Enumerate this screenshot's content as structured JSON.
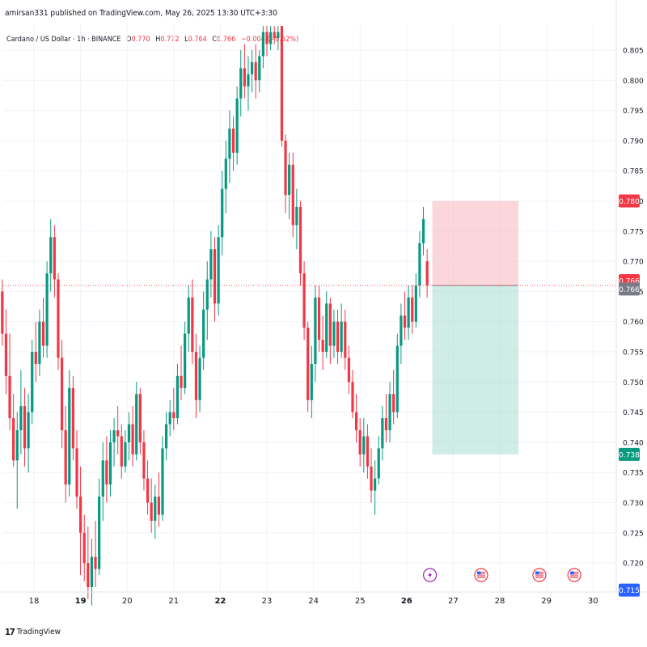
{
  "header": {
    "published_line": "amirsan331 published on TradingView.com, May 26, 2025 13:30 UTC+3:30"
  },
  "legend": {
    "symbol": "Cardano / US Dollar · 1h · BINANCE",
    "open_label": "O",
    "open": "0.770",
    "high_label": "H",
    "high": "0.772",
    "low_label": "L",
    "low": "0.764",
    "close_label": "C",
    "close": "0.766",
    "change": "−0.004 (−0.52%)"
  },
  "footer": {
    "brand": "TradingView"
  },
  "colors": {
    "up": "#089981",
    "down": "#f23645",
    "stop_zone": "#f7b6bd",
    "target_zone": "#a8dccf",
    "current_price_line": "#f23645",
    "gray_badge": "#787b86",
    "blue_badge": "#2962ff"
  },
  "chart_data": {
    "type": "candlestick",
    "y_ticks": [
      "0.805",
      "0.800",
      "0.795",
      "0.790",
      "0.785",
      "0.780",
      "0.775",
      "0.770",
      "0.765",
      "0.760",
      "0.755",
      "0.750",
      "0.745",
      "0.740",
      "0.735",
      "0.730",
      "0.725",
      "0.720"
    ],
    "ylim": [
      0.7155,
      0.809
    ],
    "x_ticks": [
      "18",
      "19",
      "20",
      "21",
      "22",
      "23",
      "24",
      "25",
      "26",
      "27",
      "28",
      "29",
      "30"
    ],
    "x_ticks_bold": [
      "19",
      "22",
      "26"
    ],
    "grid": true,
    "price_badges": [
      {
        "label": "0.780",
        "value": 0.78,
        "color": "#f23645"
      },
      {
        "label": "0.766",
        "value": 0.7668,
        "color": "#f23645"
      },
      {
        "label": "0.766",
        "value": 0.7654,
        "color": "#787b86"
      },
      {
        "label": "0.738",
        "value": 0.738,
        "color": "#089981"
      },
      {
        "label": "0.715",
        "value": 0.7155,
        "color": "#2962ff"
      }
    ],
    "current_price": 0.766,
    "position": {
      "entry": 0.766,
      "stop": 0.78,
      "target": 0.738,
      "start_day": 26.55,
      "end_day": 28.4
    },
    "event_icons": [
      {
        "icon": "lightning-icon",
        "day": 26.5
      },
      {
        "icon": "us-flag-icon",
        "day": 27.6
      },
      {
        "icon": "us-flag-icon",
        "day": 28.85
      },
      {
        "icon": "us-flag-icon",
        "day": 29.6
      }
    ],
    "candles": [
      {
        "d": 17.0,
        "o": 0.766,
        "h": 0.77,
        "l": 0.758,
        "c": 0.762
      },
      {
        "d": 17.08,
        "o": 0.762,
        "h": 0.778,
        "l": 0.76,
        "c": 0.776
      },
      {
        "d": 17.16,
        "o": 0.776,
        "h": 0.78,
        "l": 0.768,
        "c": 0.77
      },
      {
        "d": 17.24,
        "o": 0.77,
        "h": 0.772,
        "l": 0.762,
        "c": 0.765
      },
      {
        "d": 17.32,
        "o": 0.765,
        "h": 0.767,
        "l": 0.756,
        "c": 0.758
      },
      {
        "d": 17.4,
        "o": 0.758,
        "h": 0.762,
        "l": 0.748,
        "c": 0.751
      },
      {
        "d": 17.48,
        "o": 0.751,
        "h": 0.758,
        "l": 0.742,
        "c": 0.744
      },
      {
        "d": 17.56,
        "o": 0.744,
        "h": 0.748,
        "l": 0.736,
        "c": 0.737
      },
      {
        "d": 17.64,
        "o": 0.737,
        "h": 0.745,
        "l": 0.729,
        "c": 0.742
      },
      {
        "d": 17.72,
        "o": 0.742,
        "h": 0.752,
        "l": 0.738,
        "c": 0.746
      },
      {
        "d": 17.8,
        "o": 0.746,
        "h": 0.749,
        "l": 0.736,
        "c": 0.739
      },
      {
        "d": 17.88,
        "o": 0.739,
        "h": 0.748,
        "l": 0.735,
        "c": 0.745
      },
      {
        "d": 17.96,
        "o": 0.745,
        "h": 0.757,
        "l": 0.743,
        "c": 0.755
      },
      {
        "d": 18.04,
        "o": 0.755,
        "h": 0.76,
        "l": 0.75,
        "c": 0.753
      },
      {
        "d": 18.12,
        "o": 0.753,
        "h": 0.762,
        "l": 0.751,
        "c": 0.76
      },
      {
        "d": 18.2,
        "o": 0.76,
        "h": 0.764,
        "l": 0.754,
        "c": 0.756
      },
      {
        "d": 18.28,
        "o": 0.756,
        "h": 0.77,
        "l": 0.754,
        "c": 0.768
      },
      {
        "d": 18.36,
        "o": 0.768,
        "h": 0.777,
        "l": 0.765,
        "c": 0.774
      },
      {
        "d": 18.44,
        "o": 0.774,
        "h": 0.776,
        "l": 0.764,
        "c": 0.767
      },
      {
        "d": 18.52,
        "o": 0.767,
        "h": 0.768,
        "l": 0.752,
        "c": 0.754
      },
      {
        "d": 18.6,
        "o": 0.754,
        "h": 0.757,
        "l": 0.739,
        "c": 0.742
      },
      {
        "d": 18.68,
        "o": 0.742,
        "h": 0.746,
        "l": 0.73,
        "c": 0.733
      },
      {
        "d": 18.76,
        "o": 0.733,
        "h": 0.752,
        "l": 0.731,
        "c": 0.749
      },
      {
        "d": 18.84,
        "o": 0.749,
        "h": 0.751,
        "l": 0.737,
        "c": 0.739
      },
      {
        "d": 18.92,
        "o": 0.739,
        "h": 0.742,
        "l": 0.729,
        "c": 0.731
      },
      {
        "d": 19.0,
        "o": 0.731,
        "h": 0.736,
        "l": 0.718,
        "c": 0.725
      },
      {
        "d": 19.08,
        "o": 0.725,
        "h": 0.728,
        "l": 0.717,
        "c": 0.72
      },
      {
        "d": 19.16,
        "o": 0.72,
        "h": 0.726,
        "l": 0.714,
        "c": 0.716
      },
      {
        "d": 19.24,
        "o": 0.716,
        "h": 0.724,
        "l": 0.713,
        "c": 0.721
      },
      {
        "d": 19.32,
        "o": 0.721,
        "h": 0.727,
        "l": 0.716,
        "c": 0.719
      },
      {
        "d": 19.4,
        "o": 0.719,
        "h": 0.734,
        "l": 0.718,
        "c": 0.731
      },
      {
        "d": 19.48,
        "o": 0.731,
        "h": 0.74,
        "l": 0.727,
        "c": 0.737
      },
      {
        "d": 19.56,
        "o": 0.737,
        "h": 0.741,
        "l": 0.73,
        "c": 0.733
      },
      {
        "d": 19.64,
        "o": 0.733,
        "h": 0.742,
        "l": 0.731,
        "c": 0.74
      },
      {
        "d": 19.72,
        "o": 0.74,
        "h": 0.744,
        "l": 0.736,
        "c": 0.742
      },
      {
        "d": 19.8,
        "o": 0.742,
        "h": 0.746,
        "l": 0.738,
        "c": 0.741
      },
      {
        "d": 19.88,
        "o": 0.741,
        "h": 0.743,
        "l": 0.734,
        "c": 0.736
      },
      {
        "d": 19.96,
        "o": 0.736,
        "h": 0.742,
        "l": 0.735,
        "c": 0.74
      },
      {
        "d": 20.04,
        "o": 0.74,
        "h": 0.745,
        "l": 0.737,
        "c": 0.743
      },
      {
        "d": 20.12,
        "o": 0.743,
        "h": 0.746,
        "l": 0.736,
        "c": 0.738
      },
      {
        "d": 20.2,
        "o": 0.738,
        "h": 0.75,
        "l": 0.737,
        "c": 0.748
      },
      {
        "d": 20.28,
        "o": 0.748,
        "h": 0.749,
        "l": 0.738,
        "c": 0.74
      },
      {
        "d": 20.36,
        "o": 0.74,
        "h": 0.742,
        "l": 0.732,
        "c": 0.734
      },
      {
        "d": 20.44,
        "o": 0.734,
        "h": 0.737,
        "l": 0.728,
        "c": 0.73
      },
      {
        "d": 20.52,
        "o": 0.73,
        "h": 0.734,
        "l": 0.725,
        "c": 0.727
      },
      {
        "d": 20.6,
        "o": 0.727,
        "h": 0.733,
        "l": 0.724,
        "c": 0.731
      },
      {
        "d": 20.68,
        "o": 0.731,
        "h": 0.735,
        "l": 0.726,
        "c": 0.728
      },
      {
        "d": 20.76,
        "o": 0.728,
        "h": 0.741,
        "l": 0.727,
        "c": 0.739
      },
      {
        "d": 20.84,
        "o": 0.739,
        "h": 0.745,
        "l": 0.737,
        "c": 0.743
      },
      {
        "d": 20.92,
        "o": 0.743,
        "h": 0.747,
        "l": 0.741,
        "c": 0.745
      },
      {
        "d": 21.0,
        "o": 0.745,
        "h": 0.749,
        "l": 0.742,
        "c": 0.744
      },
      {
        "d": 21.08,
        "o": 0.744,
        "h": 0.753,
        "l": 0.743,
        "c": 0.751
      },
      {
        "d": 21.16,
        "o": 0.751,
        "h": 0.756,
        "l": 0.747,
        "c": 0.749
      },
      {
        "d": 21.24,
        "o": 0.749,
        "h": 0.76,
        "l": 0.748,
        "c": 0.758
      },
      {
        "d": 21.32,
        "o": 0.758,
        "h": 0.766,
        "l": 0.755,
        "c": 0.764
      },
      {
        "d": 21.4,
        "o": 0.764,
        "h": 0.767,
        "l": 0.753,
        "c": 0.755
      },
      {
        "d": 21.48,
        "o": 0.755,
        "h": 0.758,
        "l": 0.744,
        "c": 0.747
      },
      {
        "d": 21.56,
        "o": 0.747,
        "h": 0.756,
        "l": 0.745,
        "c": 0.754
      },
      {
        "d": 21.64,
        "o": 0.754,
        "h": 0.765,
        "l": 0.752,
        "c": 0.762
      },
      {
        "d": 21.72,
        "o": 0.762,
        "h": 0.77,
        "l": 0.757,
        "c": 0.767
      },
      {
        "d": 21.8,
        "o": 0.767,
        "h": 0.775,
        "l": 0.764,
        "c": 0.772
      },
      {
        "d": 21.88,
        "o": 0.772,
        "h": 0.774,
        "l": 0.76,
        "c": 0.763
      },
      {
        "d": 21.96,
        "o": 0.763,
        "h": 0.776,
        "l": 0.761,
        "c": 0.774
      },
      {
        "d": 22.04,
        "o": 0.774,
        "h": 0.785,
        "l": 0.771,
        "c": 0.782
      },
      {
        "d": 22.12,
        "o": 0.782,
        "h": 0.79,
        "l": 0.778,
        "c": 0.787
      },
      {
        "d": 22.2,
        "o": 0.787,
        "h": 0.795,
        "l": 0.783,
        "c": 0.792
      },
      {
        "d": 22.28,
        "o": 0.792,
        "h": 0.794,
        "l": 0.785,
        "c": 0.788
      },
      {
        "d": 22.36,
        "o": 0.788,
        "h": 0.799,
        "l": 0.786,
        "c": 0.797
      },
      {
        "d": 22.44,
        "o": 0.797,
        "h": 0.805,
        "l": 0.794,
        "c": 0.802
      },
      {
        "d": 22.52,
        "o": 0.802,
        "h": 0.806,
        "l": 0.797,
        "c": 0.799
      },
      {
        "d": 22.6,
        "o": 0.799,
        "h": 0.804,
        "l": 0.795,
        "c": 0.801
      },
      {
        "d": 22.68,
        "o": 0.801,
        "h": 0.805,
        "l": 0.798,
        "c": 0.803
      },
      {
        "d": 22.76,
        "o": 0.803,
        "h": 0.806,
        "l": 0.797,
        "c": 0.8
      },
      {
        "d": 22.84,
        "o": 0.8,
        "h": 0.805,
        "l": 0.798,
        "c": 0.804
      },
      {
        "d": 22.92,
        "o": 0.804,
        "h": 0.809,
        "l": 0.802,
        "c": 0.808
      },
      {
        "d": 23.0,
        "o": 0.808,
        "h": 0.809,
        "l": 0.804,
        "c": 0.806
      },
      {
        "d": 23.08,
        "o": 0.806,
        "h": 0.809,
        "l": 0.805,
        "c": 0.808
      },
      {
        "d": 23.16,
        "o": 0.808,
        "h": 0.809,
        "l": 0.806,
        "c": 0.807
      },
      {
        "d": 23.24,
        "o": 0.807,
        "h": 0.809,
        "l": 0.805,
        "c": 0.808
      },
      {
        "d": 23.32,
        "o": 0.809,
        "h": 0.809,
        "l": 0.789,
        "c": 0.79
      },
      {
        "d": 23.4,
        "o": 0.79,
        "h": 0.791,
        "l": 0.778,
        "c": 0.781
      },
      {
        "d": 23.48,
        "o": 0.781,
        "h": 0.788,
        "l": 0.777,
        "c": 0.786
      },
      {
        "d": 23.56,
        "o": 0.786,
        "h": 0.788,
        "l": 0.774,
        "c": 0.776
      },
      {
        "d": 23.64,
        "o": 0.776,
        "h": 0.782,
        "l": 0.772,
        "c": 0.779
      },
      {
        "d": 23.72,
        "o": 0.779,
        "h": 0.78,
        "l": 0.766,
        "c": 0.768
      },
      {
        "d": 23.8,
        "o": 0.768,
        "h": 0.77,
        "l": 0.757,
        "c": 0.759
      },
      {
        "d": 23.88,
        "o": 0.759,
        "h": 0.76,
        "l": 0.745,
        "c": 0.747
      },
      {
        "d": 23.96,
        "o": 0.747,
        "h": 0.756,
        "l": 0.744,
        "c": 0.753
      },
      {
        "d": 24.04,
        "o": 0.753,
        "h": 0.766,
        "l": 0.75,
        "c": 0.764
      },
      {
        "d": 24.12,
        "o": 0.764,
        "h": 0.766,
        "l": 0.755,
        "c": 0.757
      },
      {
        "d": 24.2,
        "o": 0.757,
        "h": 0.761,
        "l": 0.752,
        "c": 0.755
      },
      {
        "d": 24.28,
        "o": 0.755,
        "h": 0.765,
        "l": 0.754,
        "c": 0.763
      },
      {
        "d": 24.36,
        "o": 0.763,
        "h": 0.764,
        "l": 0.753,
        "c": 0.756
      },
      {
        "d": 24.44,
        "o": 0.756,
        "h": 0.762,
        "l": 0.754,
        "c": 0.76
      },
      {
        "d": 24.52,
        "o": 0.76,
        "h": 0.762,
        "l": 0.753,
        "c": 0.755
      },
      {
        "d": 24.6,
        "o": 0.755,
        "h": 0.763,
        "l": 0.754,
        "c": 0.76
      },
      {
        "d": 24.68,
        "o": 0.76,
        "h": 0.762,
        "l": 0.752,
        "c": 0.754
      },
      {
        "d": 24.76,
        "o": 0.754,
        "h": 0.756,
        "l": 0.748,
        "c": 0.75
      },
      {
        "d": 24.84,
        "o": 0.75,
        "h": 0.752,
        "l": 0.744,
        "c": 0.745
      },
      {
        "d": 24.92,
        "o": 0.745,
        "h": 0.748,
        "l": 0.74,
        "c": 0.742
      },
      {
        "d": 25.0,
        "o": 0.742,
        "h": 0.744,
        "l": 0.736,
        "c": 0.738
      },
      {
        "d": 25.08,
        "o": 0.738,
        "h": 0.744,
        "l": 0.735,
        "c": 0.741
      },
      {
        "d": 25.16,
        "o": 0.741,
        "h": 0.743,
        "l": 0.734,
        "c": 0.736
      },
      {
        "d": 25.24,
        "o": 0.736,
        "h": 0.739,
        "l": 0.73,
        "c": 0.732
      },
      {
        "d": 25.32,
        "o": 0.732,
        "h": 0.737,
        "l": 0.728,
        "c": 0.734
      },
      {
        "d": 25.4,
        "o": 0.734,
        "h": 0.741,
        "l": 0.733,
        "c": 0.739
      },
      {
        "d": 25.48,
        "o": 0.739,
        "h": 0.746,
        "l": 0.737,
        "c": 0.744
      },
      {
        "d": 25.56,
        "o": 0.744,
        "h": 0.748,
        "l": 0.74,
        "c": 0.742
      },
      {
        "d": 25.64,
        "o": 0.742,
        "h": 0.75,
        "l": 0.74,
        "c": 0.748
      },
      {
        "d": 25.72,
        "o": 0.748,
        "h": 0.752,
        "l": 0.743,
        "c": 0.745
      },
      {
        "d": 25.8,
        "o": 0.745,
        "h": 0.758,
        "l": 0.744,
        "c": 0.756
      },
      {
        "d": 25.88,
        "o": 0.756,
        "h": 0.763,
        "l": 0.753,
        "c": 0.761
      },
      {
        "d": 25.96,
        "o": 0.761,
        "h": 0.765,
        "l": 0.757,
        "c": 0.759
      },
      {
        "d": 26.04,
        "o": 0.759,
        "h": 0.766,
        "l": 0.757,
        "c": 0.764
      },
      {
        "d": 26.12,
        "o": 0.764,
        "h": 0.766,
        "l": 0.758,
        "c": 0.76
      },
      {
        "d": 26.2,
        "o": 0.76,
        "h": 0.768,
        "l": 0.759,
        "c": 0.766
      },
      {
        "d": 26.28,
        "o": 0.766,
        "h": 0.775,
        "l": 0.764,
        "c": 0.773
      },
      {
        "d": 26.36,
        "o": 0.773,
        "h": 0.779,
        "l": 0.771,
        "c": 0.777
      },
      {
        "d": 26.44,
        "o": 0.77,
        "h": 0.772,
        "l": 0.764,
        "c": 0.766
      }
    ]
  }
}
